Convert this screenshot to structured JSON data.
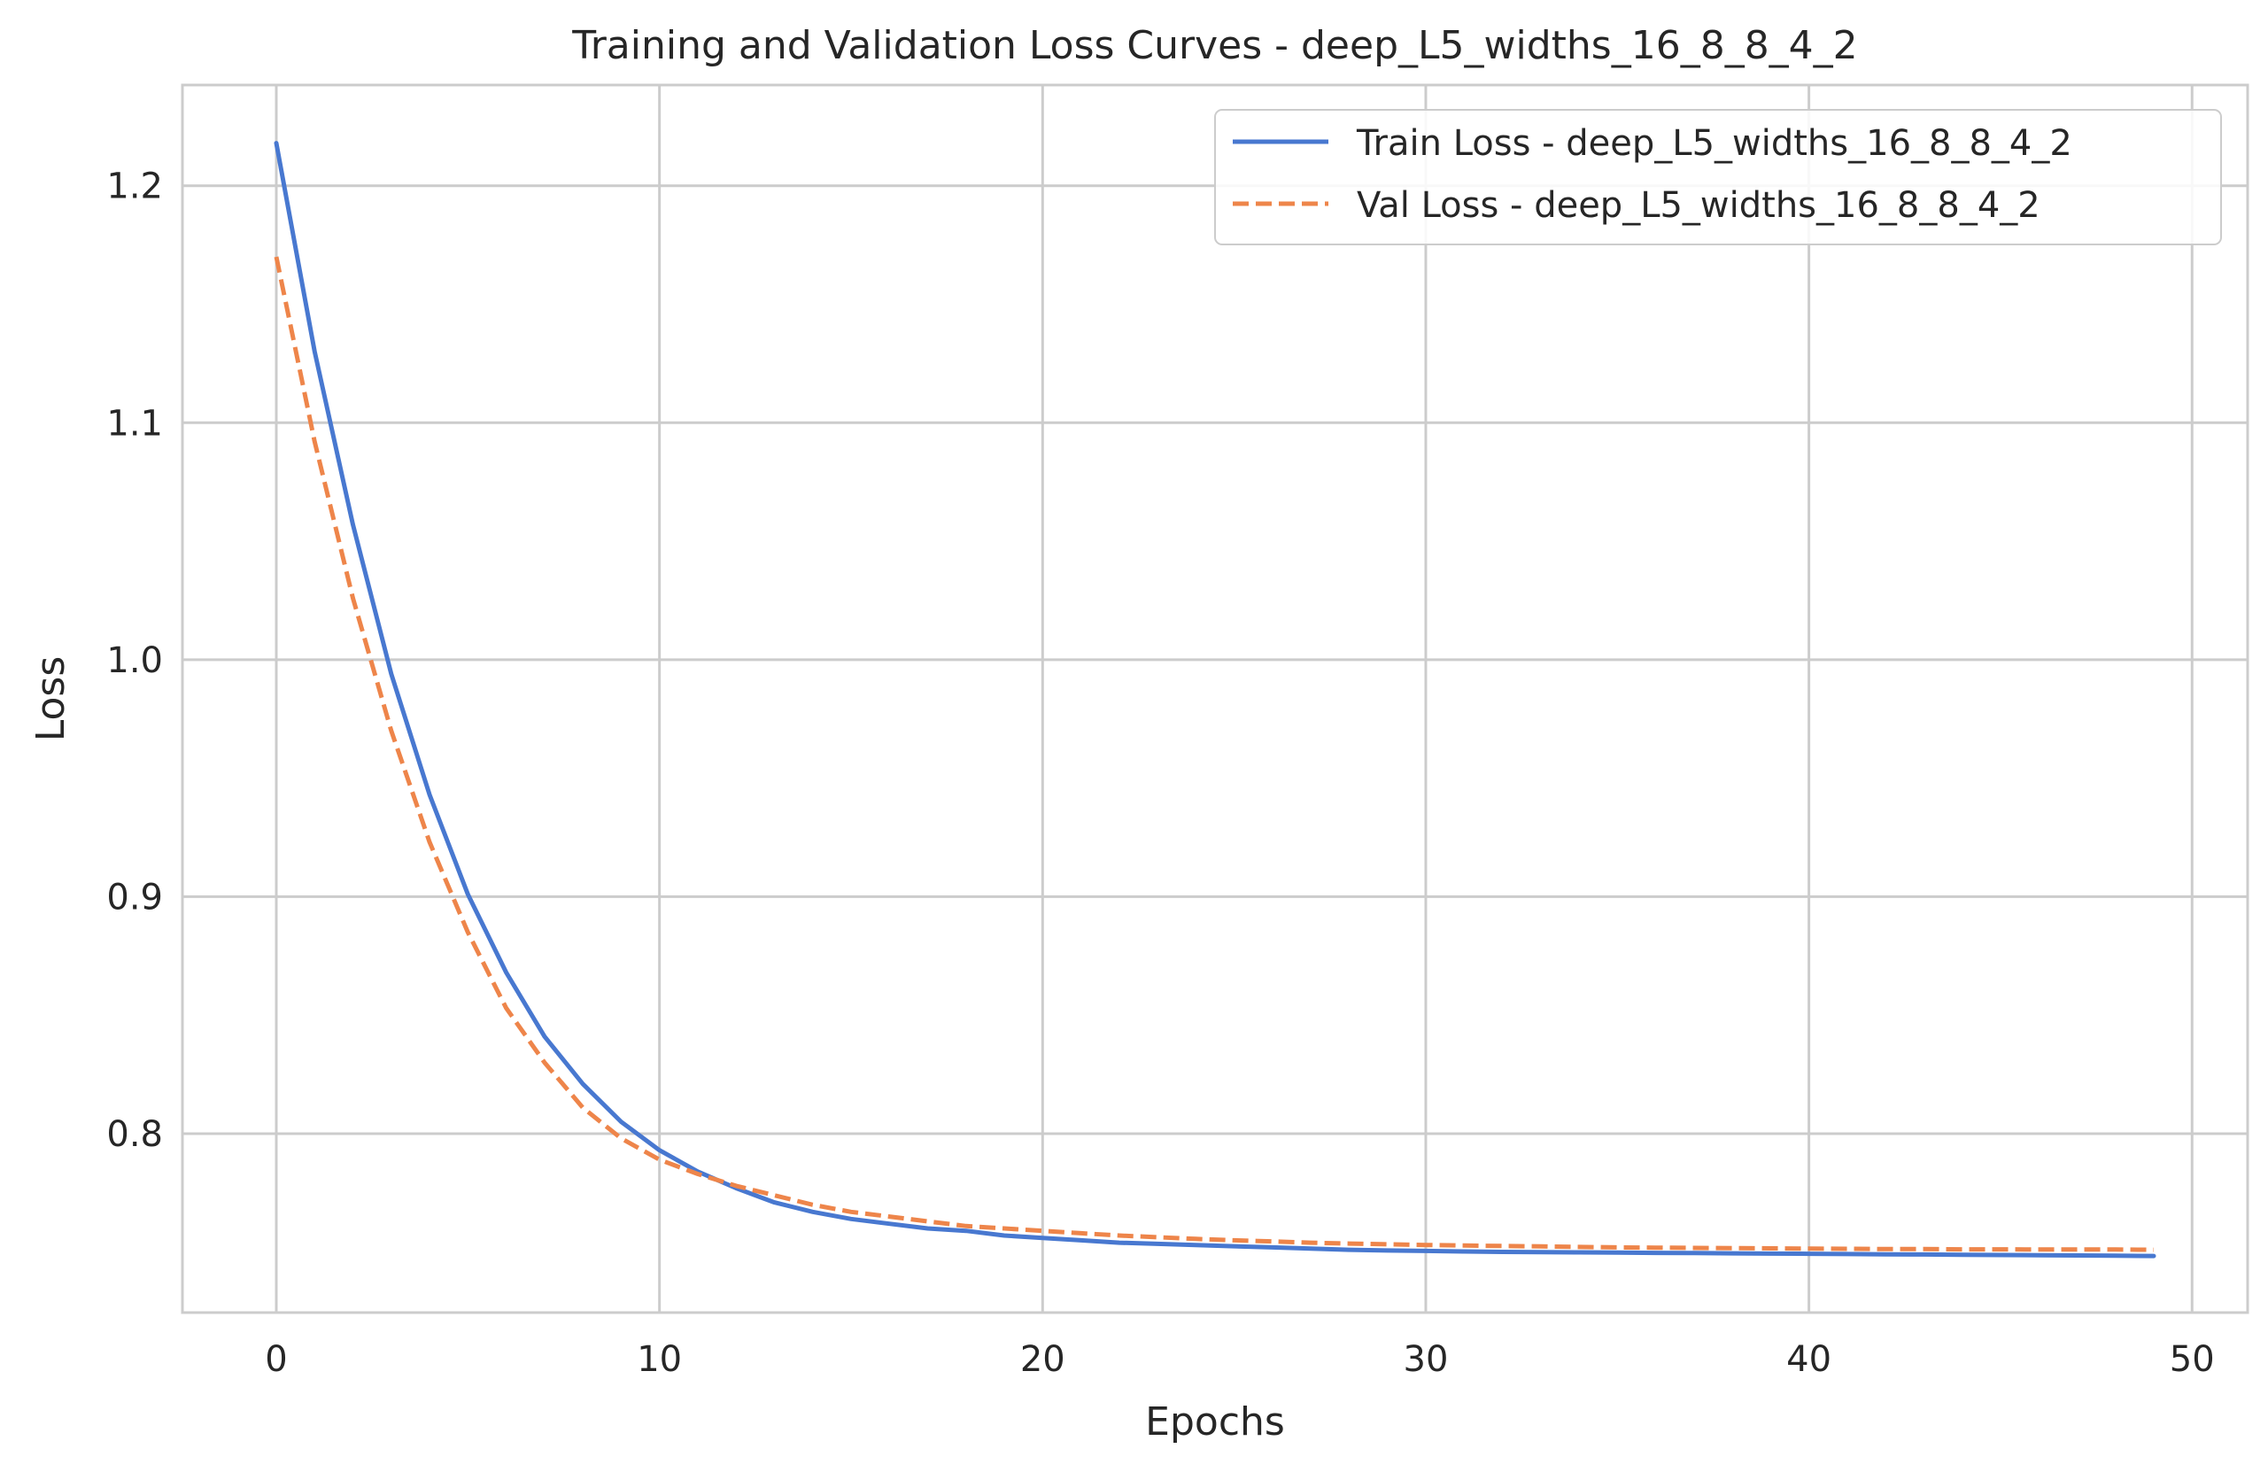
{
  "chart_data": {
    "type": "line",
    "title": "Training and Validation Loss Curves - deep_L5_widths_16_8_8_4_2",
    "xlabel": "Epochs",
    "ylabel": "Loss",
    "xlim": [
      -2.45,
      51.45
    ],
    "ylim": [
      0.7245,
      1.2425
    ],
    "xticks": [
      0,
      10,
      20,
      30,
      40,
      50
    ],
    "yticks": [
      0.8,
      0.9,
      1.0,
      1.1,
      1.2
    ],
    "xtick_labels": [
      "0",
      "10",
      "20",
      "30",
      "40",
      "50"
    ],
    "ytick_labels": [
      "0.8",
      "0.9",
      "1.0",
      "1.1",
      "1.2"
    ],
    "grid": true,
    "legend_position": "top-right",
    "x": [
      0,
      1,
      2,
      3,
      4,
      5,
      6,
      7,
      8,
      9,
      10,
      11,
      12,
      13,
      14,
      15,
      16,
      17,
      18,
      19,
      20,
      21,
      22,
      23,
      24,
      25,
      26,
      27,
      28,
      29,
      30,
      31,
      32,
      33,
      34,
      35,
      36,
      37,
      38,
      39,
      40,
      41,
      42,
      43,
      44,
      45,
      46,
      47,
      48,
      49
    ],
    "series": [
      {
        "name": "Train Loss - deep_L5_widths_16_8_8_4_2",
        "color": "#4878d0",
        "style": "solid",
        "values": [
          1.218,
          1.13,
          1.057,
          0.994,
          0.943,
          0.901,
          0.868,
          0.841,
          0.821,
          0.805,
          0.793,
          0.784,
          0.777,
          0.771,
          0.767,
          0.764,
          0.762,
          0.76,
          0.759,
          0.757,
          0.756,
          0.755,
          0.754,
          0.7535,
          0.753,
          0.7525,
          0.752,
          0.7515,
          0.751,
          0.7507,
          0.7505,
          0.7503,
          0.7501,
          0.75,
          0.7499,
          0.7498,
          0.7497,
          0.7496,
          0.7495,
          0.7494,
          0.7493,
          0.7492,
          0.7491,
          0.749,
          0.7489,
          0.7488,
          0.7487,
          0.7486,
          0.7485,
          0.7484
        ]
      },
      {
        "name": "Val Loss - deep_L5_widths_16_8_8_4_2",
        "color": "#ee854a",
        "style": "dashed",
        "values": [
          1.17,
          1.092,
          1.026,
          0.97,
          0.923,
          0.885,
          0.853,
          0.83,
          0.811,
          0.798,
          0.789,
          0.783,
          0.778,
          0.774,
          0.77,
          0.767,
          0.765,
          0.763,
          0.761,
          0.76,
          0.759,
          0.758,
          0.757,
          0.7563,
          0.7556,
          0.755,
          0.7545,
          0.754,
          0.7536,
          0.7533,
          0.753,
          0.7528,
          0.7526,
          0.7524,
          0.7522,
          0.752,
          0.7519,
          0.7518,
          0.7517,
          0.7516,
          0.7515,
          0.7514,
          0.7513,
          0.7513,
          0.7512,
          0.7512,
          0.7511,
          0.7511,
          0.7511,
          0.751
        ]
      }
    ]
  }
}
